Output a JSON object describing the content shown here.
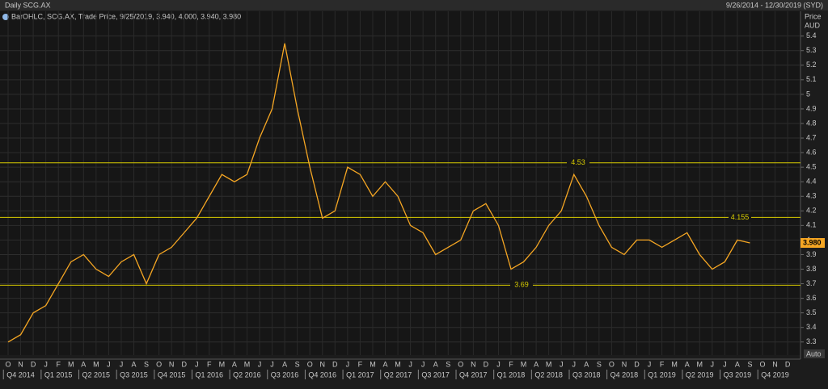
{
  "header": {
    "title": "Daily SCG.AX",
    "range": "9/26/2014 - 12/30/2019 (SYD)",
    "legend": "BarOHLC, SCG.AX, Trade Price, 9/25/2019, 3.940, 4.000, 3.940, 3.980",
    "axis_label": "Price",
    "axis_unit": "AUD",
    "scale_mode": "Auto"
  },
  "chart_data": {
    "type": "line",
    "categories": [
      "O",
      "N",
      "D",
      "J",
      "F",
      "M",
      "A",
      "M",
      "J",
      "J",
      "A",
      "S",
      "O",
      "N",
      "D",
      "J",
      "F",
      "M",
      "A",
      "M",
      "J",
      "J",
      "A",
      "S",
      "O",
      "N",
      "D",
      "J",
      "F",
      "M",
      "A",
      "M",
      "J",
      "J",
      "A",
      "S",
      "O",
      "N",
      "D",
      "J",
      "F",
      "M",
      "A",
      "M",
      "J",
      "J",
      "A",
      "S",
      "O",
      "N",
      "D",
      "J",
      "F",
      "M",
      "A",
      "M",
      "J",
      "J",
      "A",
      "S",
      "O",
      "N",
      "D"
    ],
    "quarters": [
      "Q4 2014",
      "Q1 2015",
      "Q2 2015",
      "Q3 2015",
      "Q4 2015",
      "Q1 2016",
      "Q2 2016",
      "Q3 2016",
      "Q4 2016",
      "Q1 2017",
      "Q2 2017",
      "Q3 2017",
      "Q4 2017",
      "Q1 2018",
      "Q2 2018",
      "Q3 2018",
      "Q4 2018",
      "Q1 2019",
      "Q2 2019",
      "Q3 2019",
      "Q4 2019"
    ],
    "series": [
      {
        "name": "SCG.AX",
        "color": "#f5a623",
        "values": [
          3.3,
          3.35,
          3.5,
          3.55,
          3.7,
          3.85,
          3.9,
          3.8,
          3.75,
          3.85,
          3.9,
          3.7,
          3.9,
          3.95,
          4.05,
          4.15,
          4.3,
          4.45,
          4.4,
          4.45,
          4.7,
          4.9,
          5.35,
          4.9,
          4.5,
          4.15,
          4.2,
          4.5,
          4.45,
          4.3,
          4.4,
          4.3,
          4.1,
          4.05,
          3.9,
          3.95,
          4.0,
          4.2,
          4.25,
          4.1,
          3.8,
          3.85,
          3.95,
          4.1,
          4.2,
          4.45,
          4.3,
          4.1,
          3.95,
          3.9,
          4.0,
          4.0,
          3.95,
          4.0,
          4.05,
          3.9,
          3.8,
          3.85,
          4.0,
          3.98,
          null,
          null,
          null
        ],
        "value_labels": [
          null,
          null,
          null,
          null,
          null,
          null,
          null,
          null,
          null,
          null,
          null,
          null,
          null,
          null,
          null,
          null,
          null,
          null,
          null,
          null,
          null,
          null,
          null,
          null,
          null,
          null,
          null,
          null,
          null,
          null,
          null,
          null,
          null,
          null,
          null,
          null,
          null,
          null,
          null,
          null,
          null,
          null,
          null,
          null,
          null,
          null,
          null,
          null,
          null,
          null,
          null,
          null,
          null,
          null,
          null,
          null,
          null,
          null,
          null,
          "3.980",
          null,
          null,
          null
        ]
      }
    ],
    "levels": [
      4.53,
      4.155,
      3.69
    ],
    "level_color": "#d8cc00",
    "ylim": [
      3.21,
      5.57
    ],
    "yticks": [
      3.3,
      3.4,
      3.5,
      3.6,
      3.7,
      3.8,
      3.9,
      4,
      4.1,
      4.2,
      4.3,
      4.4,
      4.5,
      4.6,
      4.7,
      4.8,
      4.9,
      5,
      5.1,
      5.2,
      5.3,
      5.4
    ],
    "grid": true
  }
}
